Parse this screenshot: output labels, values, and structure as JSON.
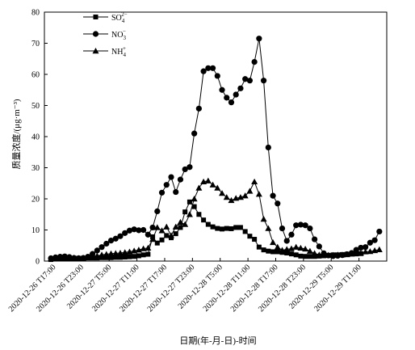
{
  "chart_data": {
    "type": "line",
    "xlabel": "日期(年-月-日)-时间",
    "ylabel": "质量浓度/(μg·m⁻³)",
    "ylim": [
      0,
      80
    ],
    "yticks": [
      0,
      10,
      20,
      30,
      40,
      50,
      60,
      70,
      80
    ],
    "xlim": [
      0,
      72
    ],
    "x_tick_hours": [
      0,
      6,
      12,
      18,
      24,
      30,
      36,
      42,
      48,
      54,
      60,
      66
    ],
    "x_tick_labels": [
      "2020-12-26 T17:00",
      "2020-12-26 T23:00",
      "2020-12-27 T5:00",
      "2020-12-27 T11:00",
      "2020-12-27 T17:00",
      "2020-12-27 T23:00",
      "2020-12-28 T5:00",
      "2020-12-28 T11:00",
      "2020-12-28 T17:00",
      "2020-12-28 T23:00",
      "2020-12-29 T5:00",
      "2020-12-29 T11:00"
    ],
    "grid": false,
    "legend_position": "top-left",
    "series": [
      {
        "name": "SO42−",
        "legend_base": "SO",
        "legend_sub": "4",
        "legend_sup": "2−",
        "marker": "square",
        "points": [
          [
            -0.6,
            0.5
          ],
          [
            0.4,
            0.7
          ],
          [
            1.4,
            0.8
          ],
          [
            2.4,
            0.8
          ],
          [
            3.4,
            0.8
          ],
          [
            4.4,
            0.9
          ],
          [
            5.4,
            0.9
          ],
          [
            6.4,
            0.9
          ],
          [
            7.4,
            1.0
          ],
          [
            8.4,
            1.0
          ],
          [
            9.4,
            1.0
          ],
          [
            10.4,
            1.1
          ],
          [
            11.4,
            1.1
          ],
          [
            12.4,
            1.1
          ],
          [
            13.4,
            1.2
          ],
          [
            14.4,
            1.2
          ],
          [
            15.4,
            1.3
          ],
          [
            16.4,
            1.4
          ],
          [
            17.4,
            1.5
          ],
          [
            18.4,
            1.7
          ],
          [
            19.4,
            2.0
          ],
          [
            20.4,
            2.2
          ],
          [
            21.4,
            7.8
          ],
          [
            22.4,
            5.8
          ],
          [
            23.4,
            6.8
          ],
          [
            24.4,
            8.2
          ],
          [
            25.4,
            7.5
          ],
          [
            26.4,
            8.8
          ],
          [
            27.4,
            10.8
          ],
          [
            28.4,
            15.8
          ],
          [
            29.4,
            19.0
          ],
          [
            30.4,
            17.5
          ],
          [
            31.4,
            15.0
          ],
          [
            32.4,
            13.2
          ],
          [
            33.4,
            11.8
          ],
          [
            34.4,
            11.0
          ],
          [
            35.4,
            10.5
          ],
          [
            36.4,
            10.3
          ],
          [
            37.4,
            10.5
          ],
          [
            38.4,
            10.4
          ],
          [
            39.4,
            10.8
          ],
          [
            40.4,
            10.8
          ],
          [
            41.4,
            9.5
          ],
          [
            42.4,
            8.0
          ],
          [
            43.4,
            7.0
          ],
          [
            44.4,
            4.5
          ],
          [
            45.4,
            3.6
          ],
          [
            46.4,
            3.2
          ],
          [
            47.4,
            3.0
          ],
          [
            48.4,
            3.0
          ],
          [
            49.4,
            2.8
          ],
          [
            50.4,
            2.6
          ],
          [
            51.4,
            2.3
          ],
          [
            52.4,
            2.0
          ],
          [
            53.4,
            1.6
          ],
          [
            54.4,
            1.5
          ],
          [
            55.4,
            1.5
          ],
          [
            56.4,
            1.5
          ],
          [
            57.4,
            1.6
          ],
          [
            58.4,
            1.7
          ],
          [
            59.4,
            1.8
          ],
          [
            60.4,
            2.0
          ],
          [
            61.4,
            2.0
          ],
          [
            62.4,
            2.1
          ],
          [
            63.4,
            2.2
          ],
          [
            64.4,
            2.3
          ],
          [
            65.4,
            2.3
          ],
          [
            66.4,
            2.4
          ]
        ]
      },
      {
        "name": "NO3−",
        "legend_base": "NO",
        "legend_sub": "3",
        "legend_sup": "−",
        "marker": "circle",
        "points": [
          [
            -0.6,
            0.9
          ],
          [
            0.4,
            1.2
          ],
          [
            1.4,
            1.4
          ],
          [
            2.4,
            1.5
          ],
          [
            3.4,
            1.3
          ],
          [
            4.4,
            1.0
          ],
          [
            5.4,
            0.9
          ],
          [
            6.4,
            1.0
          ],
          [
            7.4,
            1.4
          ],
          [
            8.4,
            2.3
          ],
          [
            9.4,
            3.4
          ],
          [
            10.4,
            4.5
          ],
          [
            11.4,
            5.6
          ],
          [
            12.4,
            6.6
          ],
          [
            13.4,
            7.2
          ],
          [
            14.4,
            8.0
          ],
          [
            15.4,
            9.0
          ],
          [
            16.4,
            9.8
          ],
          [
            17.4,
            10.2
          ],
          [
            18.4,
            9.9
          ],
          [
            19.4,
            10.0
          ],
          [
            20.4,
            8.5
          ],
          [
            21.4,
            10.8
          ],
          [
            22.4,
            16.0
          ],
          [
            23.4,
            22.0
          ],
          [
            24.4,
            24.5
          ],
          [
            25.4,
            27.0
          ],
          [
            26.4,
            22.2
          ],
          [
            27.4,
            26.2
          ],
          [
            28.4,
            29.5
          ],
          [
            29.4,
            30.2
          ],
          [
            30.4,
            41.0
          ],
          [
            31.4,
            49.0
          ],
          [
            32.4,
            61.0
          ],
          [
            33.4,
            62.0
          ],
          [
            34.4,
            62.0
          ],
          [
            35.4,
            59.5
          ],
          [
            36.4,
            55.0
          ],
          [
            37.4,
            52.5
          ],
          [
            38.4,
            51.0
          ],
          [
            39.4,
            53.5
          ],
          [
            40.4,
            55.5
          ],
          [
            41.4,
            58.5
          ],
          [
            42.4,
            58.0
          ],
          [
            43.4,
            64.0
          ],
          [
            44.4,
            71.5
          ],
          [
            45.4,
            58.0
          ],
          [
            46.4,
            36.5
          ],
          [
            47.4,
            21.0
          ],
          [
            48.4,
            18.5
          ],
          [
            49.4,
            10.5
          ],
          [
            50.4,
            6.5
          ],
          [
            51.4,
            8.5
          ],
          [
            52.4,
            11.5
          ],
          [
            53.4,
            11.7
          ],
          [
            54.4,
            11.5
          ],
          [
            55.4,
            10.5
          ],
          [
            56.4,
            7.0
          ],
          [
            57.4,
            4.7
          ],
          [
            58.4,
            2.5
          ],
          [
            59.4,
            1.8
          ],
          [
            60.4,
            1.6
          ],
          [
            61.4,
            1.7
          ],
          [
            62.4,
            1.9
          ],
          [
            63.4,
            2.2
          ],
          [
            64.4,
            2.6
          ],
          [
            65.4,
            3.6
          ],
          [
            66.4,
            4.3
          ],
          [
            67.4,
            4.5
          ],
          [
            68.4,
            5.9
          ],
          [
            69.4,
            6.7
          ],
          [
            70.4,
            9.5
          ]
        ]
      },
      {
        "name": "NH4+",
        "legend_base": "NH",
        "legend_sub": "4",
        "legend_sup": "+",
        "marker": "triangle",
        "points": [
          [
            -0.6,
            0.8
          ],
          [
            0.4,
            1.0
          ],
          [
            1.4,
            1.1
          ],
          [
            2.4,
            1.2
          ],
          [
            3.4,
            1.1
          ],
          [
            4.4,
            1.0
          ],
          [
            5.4,
            0.9
          ],
          [
            6.4,
            1.0
          ],
          [
            7.4,
            1.2
          ],
          [
            8.4,
            1.5
          ],
          [
            9.4,
            1.7
          ],
          [
            10.4,
            2.0
          ],
          [
            11.4,
            2.2
          ],
          [
            12.4,
            2.4
          ],
          [
            13.4,
            2.5
          ],
          [
            14.4,
            2.6
          ],
          [
            15.4,
            2.8
          ],
          [
            16.4,
            3.0
          ],
          [
            17.4,
            3.3
          ],
          [
            18.4,
            3.6
          ],
          [
            19.4,
            4.0
          ],
          [
            20.4,
            4.2
          ],
          [
            21.4,
            7.0
          ],
          [
            22.4,
            10.8
          ],
          [
            23.4,
            9.8
          ],
          [
            24.4,
            11.0
          ],
          [
            25.4,
            8.2
          ],
          [
            26.4,
            11.0
          ],
          [
            27.4,
            12.5
          ],
          [
            28.4,
            11.8
          ],
          [
            29.4,
            15.0
          ],
          [
            30.4,
            20.0
          ],
          [
            31.4,
            23.5
          ],
          [
            32.4,
            25.5
          ],
          [
            33.4,
            25.8
          ],
          [
            34.4,
            24.5
          ],
          [
            35.4,
            23.5
          ],
          [
            36.4,
            21.8
          ],
          [
            37.4,
            20.5
          ],
          [
            38.4,
            19.5
          ],
          [
            39.4,
            20.2
          ],
          [
            40.4,
            20.5
          ],
          [
            41.4,
            21.0
          ],
          [
            42.4,
            22.5
          ],
          [
            43.4,
            25.5
          ],
          [
            44.4,
            21.5
          ],
          [
            45.4,
            13.5
          ],
          [
            46.4,
            10.5
          ],
          [
            47.4,
            6.0
          ],
          [
            48.4,
            4.5
          ],
          [
            49.4,
            3.5
          ],
          [
            50.4,
            3.8
          ],
          [
            51.4,
            4.0
          ],
          [
            52.4,
            4.5
          ],
          [
            53.4,
            4.2
          ],
          [
            54.4,
            3.9
          ],
          [
            55.4,
            3.2
          ],
          [
            56.4,
            2.5
          ],
          [
            57.4,
            2.0
          ],
          [
            58.4,
            1.9
          ],
          [
            59.4,
            1.9
          ],
          [
            60.4,
            1.9
          ],
          [
            61.4,
            2.0
          ],
          [
            62.4,
            2.0
          ],
          [
            63.4,
            2.1
          ],
          [
            64.4,
            2.3
          ],
          [
            65.4,
            2.5
          ],
          [
            66.4,
            2.6
          ],
          [
            67.4,
            3.0
          ],
          [
            68.4,
            3.1
          ],
          [
            69.4,
            3.4
          ],
          [
            70.4,
            3.7
          ]
        ]
      }
    ]
  }
}
